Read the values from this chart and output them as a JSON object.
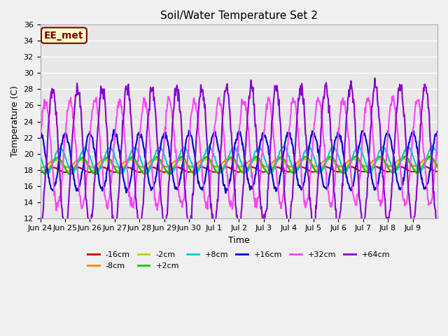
{
  "title": "Soil/Water Temperature Set 2",
  "xlabel": "Time",
  "ylabel": "Temperature (C)",
  "ylim": [
    12,
    36
  ],
  "yticks": [
    12,
    14,
    16,
    18,
    20,
    22,
    24,
    26,
    28,
    30,
    32,
    34,
    36
  ],
  "plot_bg": "#e8e8e8",
  "fig_bg": "#f0f0f0",
  "annotation_text": "EE_met",
  "annotation_bg": "#ffffcc",
  "annotation_border": "#800000",
  "series_keys": [
    "-16cm",
    "-8cm",
    "-2cm",
    "+2cm",
    "+8cm",
    "+16cm",
    "+32cm",
    "+64cm"
  ],
  "series_colors": [
    "#cc0000",
    "#ff8800",
    "#cccc00",
    "#00cc00",
    "#00cccc",
    "#0000cc",
    "#ff44ff",
    "#8800cc"
  ],
  "series_lw": [
    1.5,
    1.5,
    1.5,
    1.5,
    1.5,
    1.5,
    1.5,
    1.5
  ],
  "n_days": 16,
  "pts_per_day": 48,
  "base_temps": [
    18.0,
    18.8,
    18.5,
    18.5,
    19.2,
    19.0,
    20.0,
    19.5
  ],
  "amplitudes": [
    0.3,
    0.5,
    0.7,
    1.0,
    1.5,
    3.5,
    6.5,
    8.5
  ],
  "trend": [
    0.005,
    0.01,
    0.01,
    0.01,
    0.01,
    0.01,
    0.02,
    0.03
  ],
  "phase_offset": [
    0.0,
    0.1,
    0.15,
    0.2,
    0.3,
    0.5,
    0.7,
    1.0
  ],
  "xtick_labels": [
    "Jun 24",
    "Jun 25",
    "Jun 26",
    "Jun 27",
    "Jun 28",
    "Jun 29",
    "Jun 30",
    "Jul 1",
    "Jul 2",
    "Jul 3",
    "Jul 4",
    "Jul 5",
    "Jul 6",
    "Jul 7",
    "Jul 8",
    "Jul 9"
  ],
  "figsize": [
    6.4,
    4.8
  ],
  "dpi": 100
}
